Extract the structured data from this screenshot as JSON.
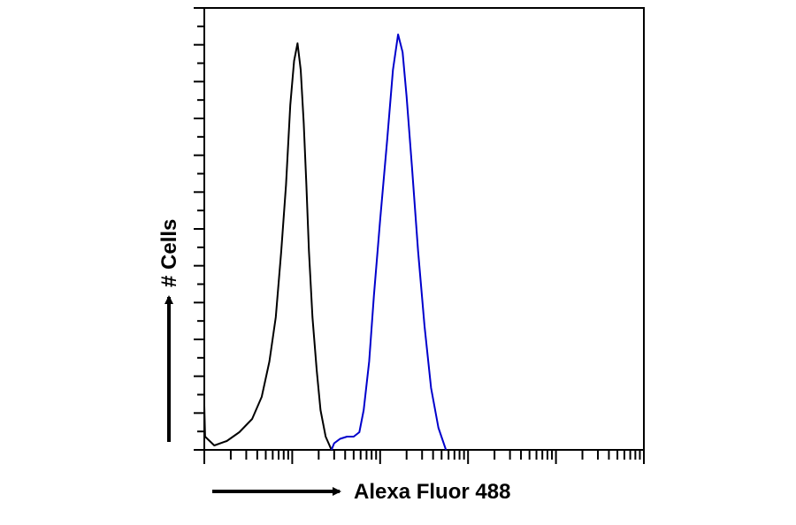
{
  "chart_data": {
    "type": "line",
    "title": "",
    "xlabel": "Alexa Fluor 488",
    "ylabel": "# Cells",
    "x_scale": "log",
    "xlim": [
      1,
      100000
    ],
    "ylim": [
      0,
      100
    ],
    "grid": false,
    "legend": "none",
    "series": [
      {
        "color": "#000000",
        "points": [
          [
            1,
            10
          ],
          [
            1.02,
            3
          ],
          [
            1.3,
            1
          ],
          [
            1.8,
            2
          ],
          [
            2.5,
            4
          ],
          [
            3.5,
            7
          ],
          [
            4.5,
            12
          ],
          [
            5.5,
            20
          ],
          [
            6.5,
            30
          ],
          [
            7.5,
            45
          ],
          [
            8.5,
            60
          ],
          [
            9.5,
            78
          ],
          [
            10.5,
            88
          ],
          [
            11.5,
            92
          ],
          [
            12.5,
            86
          ],
          [
            13.5,
            74
          ],
          [
            14.5,
            60
          ],
          [
            15.5,
            45
          ],
          [
            17,
            30
          ],
          [
            19,
            18
          ],
          [
            21,
            9
          ],
          [
            24,
            3
          ],
          [
            28,
            0
          ]
        ]
      },
      {
        "color": "#0000CC",
        "points": [
          [
            28,
            0
          ],
          [
            30,
            1.5
          ],
          [
            35,
            2.5
          ],
          [
            42,
            3
          ],
          [
            50,
            3
          ],
          [
            58,
            4
          ],
          [
            65,
            9
          ],
          [
            75,
            20
          ],
          [
            85,
            35
          ],
          [
            100,
            52
          ],
          [
            120,
            70
          ],
          [
            140,
            86
          ],
          [
            160,
            94
          ],
          [
            180,
            90
          ],
          [
            200,
            80
          ],
          [
            230,
            64
          ],
          [
            270,
            45
          ],
          [
            320,
            28
          ],
          [
            380,
            14
          ],
          [
            460,
            5
          ],
          [
            560,
            0
          ]
        ]
      }
    ]
  }
}
